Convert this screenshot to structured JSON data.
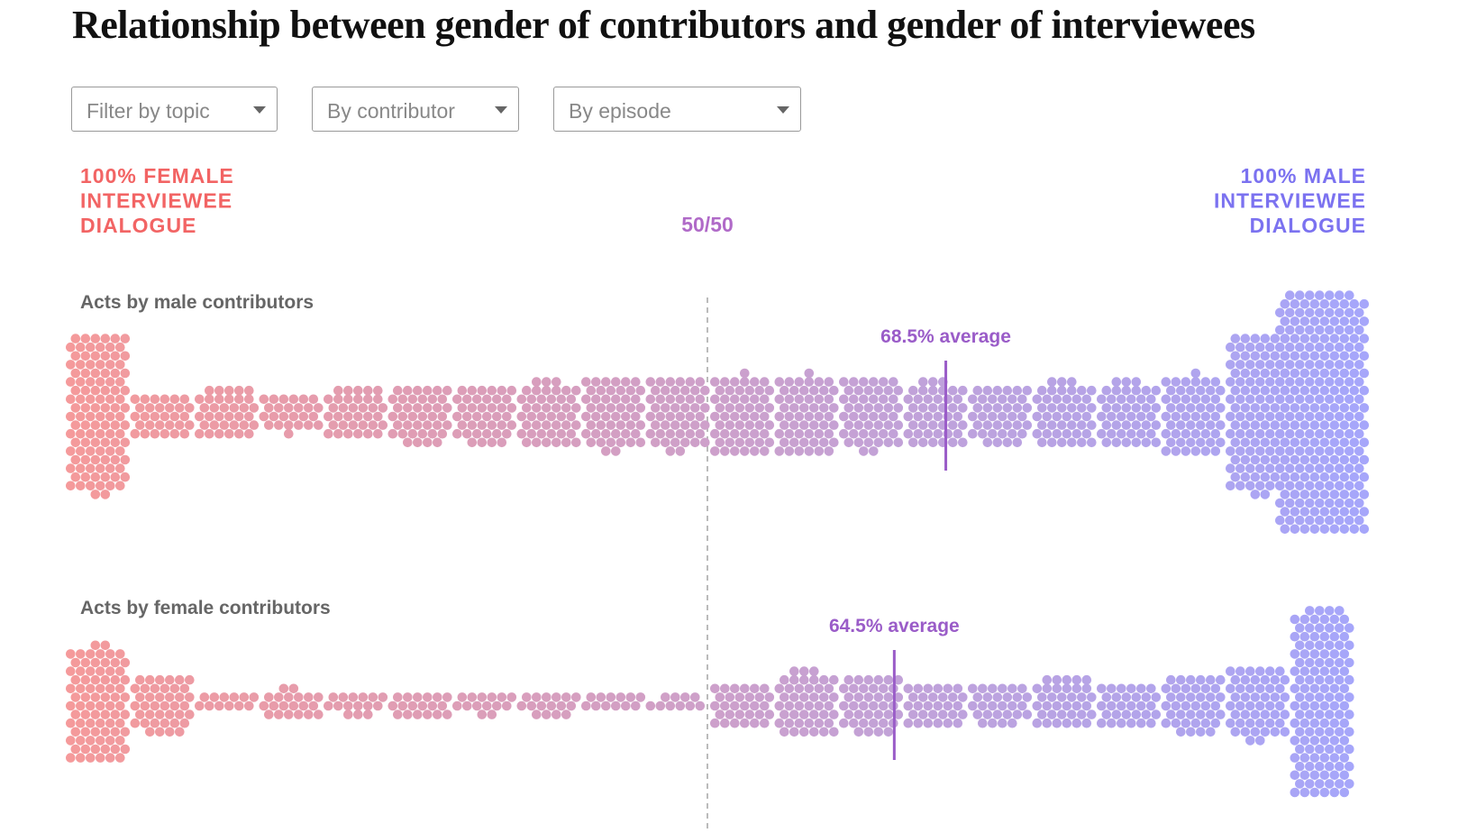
{
  "title": "Relationship between gender of contributors and gender of interviewees",
  "filters": [
    "Filter by topic",
    "By contributor",
    "By episode"
  ],
  "left_label": [
    "100% FEMALE",
    "INTERVIEWEE",
    "DIALOGUE"
  ],
  "right_label": [
    "100% MALE",
    "INTERVIEWEE",
    "DIALOGUE"
  ],
  "midline": {
    "value": 50,
    "label": "50/50"
  },
  "chart_data": [
    {
      "type": "beeswarm",
      "subtitle": "Acts by male contributors",
      "xlim": [
        0,
        100
      ],
      "colors": [
        "#f59a9a",
        "#a6a6fa"
      ],
      "bins": [
        0,
        5,
        10,
        15,
        20,
        25,
        30,
        35,
        40,
        45,
        50,
        55,
        60,
        65,
        70,
        75,
        80,
        85,
        90,
        95,
        100
      ],
      "counts": [
        110,
        30,
        35,
        25,
        35,
        40,
        40,
        45,
        50,
        50,
        55,
        55,
        50,
        45,
        40,
        45,
        45,
        55,
        110,
        250
      ],
      "average": 68.5,
      "average_label": "68.5% average"
    },
    {
      "type": "beeswarm",
      "subtitle": "Acts by female contributors",
      "xlim": [
        0,
        100
      ],
      "colors": [
        "#f59a9a",
        "#a6a6fa"
      ],
      "bins": [
        0,
        5,
        10,
        15,
        20,
        25,
        30,
        35,
        40,
        45,
        50,
        55,
        60,
        65,
        70,
        75,
        80,
        85,
        90,
        95,
        100
      ],
      "counts": [
        80,
        40,
        12,
        20,
        15,
        18,
        14,
        16,
        12,
        10,
        30,
        45,
        40,
        30,
        28,
        35,
        30,
        40,
        50,
        130
      ],
      "average": 64.5,
      "average_label": "64.5% average"
    }
  ]
}
